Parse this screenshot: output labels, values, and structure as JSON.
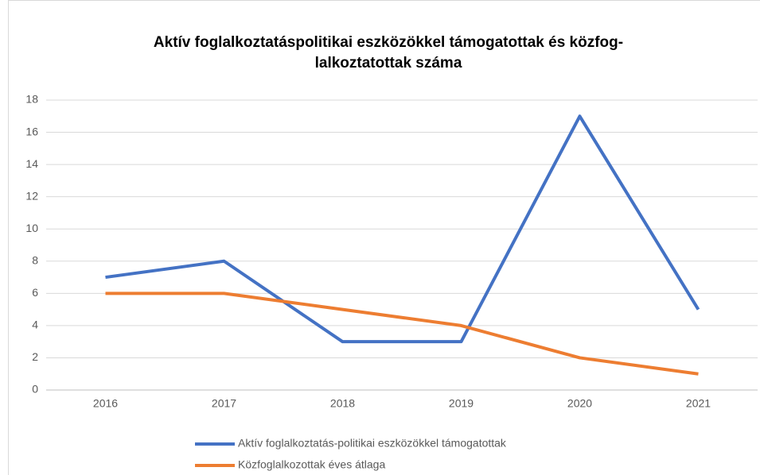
{
  "chart_data": {
    "type": "line",
    "title": [
      "Aktív foglalkoztatáspolitikai eszközökkel támogatottak és közfog-",
      "lalkoztatottak száma"
    ],
    "categories": [
      "2016",
      "2017",
      "2018",
      "2019",
      "2020",
      "2021"
    ],
    "series": [
      {
        "name": "Aktív foglalkoztatás-politikai eszközökkel támogatottak",
        "color": "#4472c4",
        "values": [
          7,
          8,
          3,
          3,
          17,
          5
        ]
      },
      {
        "name": "Közfoglalkozottak éves átlaga",
        "color": "#ed7d31",
        "values": [
          6,
          6,
          5,
          4,
          2,
          1
        ]
      }
    ],
    "ylim": [
      0,
      18
    ],
    "yticks": [
      0,
      2,
      4,
      6,
      8,
      10,
      12,
      14,
      16,
      18
    ],
    "grid": true,
    "legend": "bottom"
  }
}
